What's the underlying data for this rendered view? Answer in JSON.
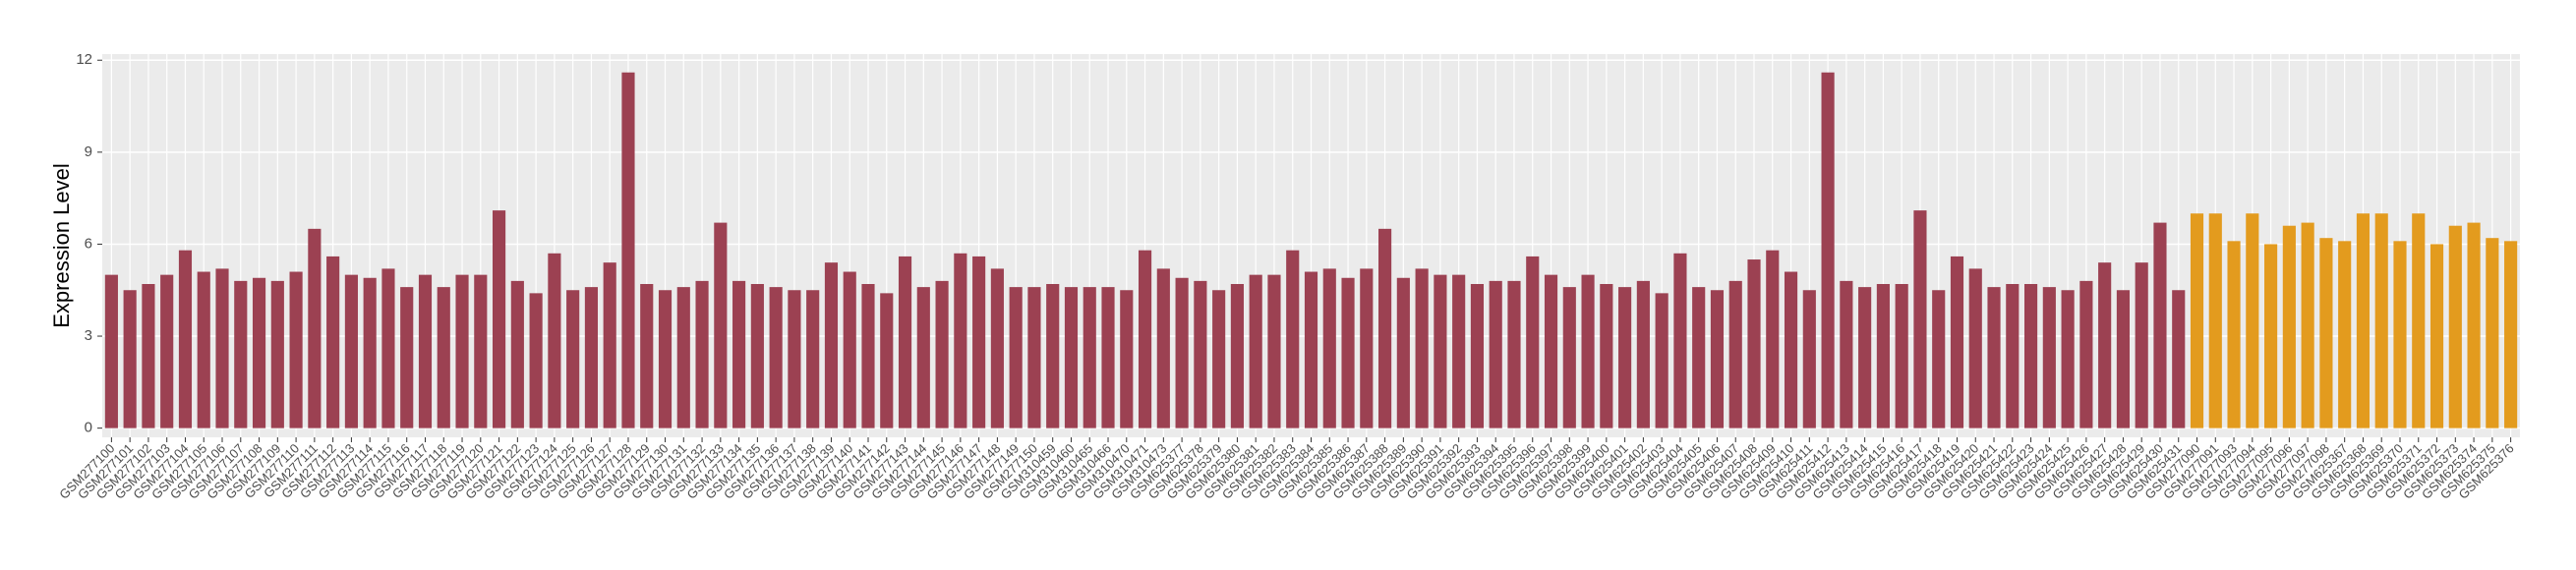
{
  "chart_data": {
    "type": "bar",
    "y_label": "Expression Level",
    "ylim": [
      -0.3,
      12.2
    ],
    "yticks": [
      0,
      3,
      6,
      9,
      12
    ],
    "grid": true,
    "categories": [
      "GSM277100",
      "GSM277101",
      "GSM277102",
      "GSM277103",
      "GSM277104",
      "GSM277105",
      "GSM277106",
      "GSM277107",
      "GSM277108",
      "GSM277109",
      "GSM277110",
      "GSM277111",
      "GSM277112",
      "GSM277113",
      "GSM277114",
      "GSM277115",
      "GSM277116",
      "GSM277117",
      "GSM277118",
      "GSM277119",
      "GSM277120",
      "GSM277121",
      "GSM277122",
      "GSM277123",
      "GSM277124",
      "GSM277125",
      "GSM277126",
      "GSM277127",
      "GSM277128",
      "GSM277129",
      "GSM277130",
      "GSM277131",
      "GSM277132",
      "GSM277133",
      "GSM277134",
      "GSM277135",
      "GSM277136",
      "GSM277137",
      "GSM277138",
      "GSM277139",
      "GSM277140",
      "GSM277141",
      "GSM277142",
      "GSM277143",
      "GSM277144",
      "GSM277145",
      "GSM277146",
      "GSM277147",
      "GSM277148",
      "GSM277149",
      "GSM277150",
      "GSM310459",
      "GSM310460",
      "GSM310465",
      "GSM310466",
      "GSM310470",
      "GSM310471",
      "GSM310473",
      "GSM625377",
      "GSM625378",
      "GSM625379",
      "GSM625380",
      "GSM625381",
      "GSM625382",
      "GSM625383",
      "GSM625384",
      "GSM625385",
      "GSM625386",
      "GSM625387",
      "GSM625388",
      "GSM625389",
      "GSM625390",
      "GSM625391",
      "GSM625392",
      "GSM625393",
      "GSM625394",
      "GSM625395",
      "GSM625396",
      "GSM625397",
      "GSM625398",
      "GSM625399",
      "GSM625400",
      "GSM625401",
      "GSM625402",
      "GSM625403",
      "GSM625404",
      "GSM625405",
      "GSM625406",
      "GSM625407",
      "GSM625408",
      "GSM625409",
      "GSM625410",
      "GSM625411",
      "GSM625412",
      "GSM625413",
      "GSM625414",
      "GSM625415",
      "GSM625416",
      "GSM625417",
      "GSM625418",
      "GSM625419",
      "GSM625420",
      "GSM625421",
      "GSM625422",
      "GSM625423",
      "GSM625424",
      "GSM625425",
      "GSM625426",
      "GSM625427",
      "GSM625428",
      "GSM625429",
      "GSM625430",
      "GSM625431",
      "GSM277090",
      "GSM277091",
      "GSM277093",
      "GSM277094",
      "GSM277095",
      "GSM277096",
      "GSM277097",
      "GSM277098",
      "GSM625367",
      "GSM625368",
      "GSM625369",
      "GSM625370",
      "GSM625371",
      "GSM625372",
      "GSM625373",
      "GSM625374",
      "GSM625375",
      "GSM625376"
    ],
    "values": [
      5.0,
      4.5,
      4.7,
      5.0,
      5.8,
      5.1,
      5.2,
      4.8,
      4.9,
      4.8,
      5.1,
      6.5,
      5.6,
      5.0,
      4.9,
      5.2,
      4.6,
      5.0,
      4.6,
      5.0,
      5.0,
      7.1,
      4.8,
      4.4,
      5.7,
      4.5,
      4.6,
      5.4,
      11.6,
      4.7,
      4.5,
      4.6,
      4.8,
      6.7,
      4.8,
      4.7,
      4.6,
      4.5,
      4.5,
      5.4,
      5.1,
      4.7,
      4.4,
      5.6,
      4.6,
      4.8,
      5.7,
      5.6,
      5.2,
      4.6,
      4.6,
      4.7,
      4.6,
      4.6,
      4.6,
      4.5,
      5.8,
      5.2,
      4.9,
      4.8,
      4.5,
      4.7,
      5.0,
      5.0,
      5.8,
      5.1,
      5.2,
      4.9,
      5.2,
      6.5,
      4.9,
      5.2,
      5.0,
      5.0,
      4.7,
      4.8,
      4.8,
      5.6,
      5.0,
      4.6,
      5.0,
      4.7,
      4.6,
      4.8,
      4.4,
      5.7,
      4.6,
      4.5,
      4.8,
      5.5,
      5.8,
      5.1,
      4.5,
      11.6,
      4.8,
      4.6,
      4.7,
      4.7,
      7.1,
      4.5,
      5.6,
      5.2,
      4.6,
      4.7,
      4.7,
      4.6,
      4.5,
      4.8,
      5.4,
      4.5,
      5.4,
      6.7,
      4.5,
      7.0,
      7.0,
      6.1,
      7.0,
      6.0,
      6.6,
      6.7,
      6.2,
      6.1,
      7.0,
      7.0,
      6.1,
      7.0,
      6.0,
      6.6,
      6.7,
      6.2,
      6.1
    ],
    "colors": [
      "#9c4152",
      "#e39b1e"
    ],
    "bar_groups": [
      0,
      0,
      0,
      0,
      0,
      0,
      0,
      0,
      0,
      0,
      0,
      0,
      0,
      0,
      0,
      0,
      0,
      0,
      0,
      0,
      0,
      0,
      0,
      0,
      0,
      0,
      0,
      0,
      0,
      0,
      0,
      0,
      0,
      0,
      0,
      0,
      0,
      0,
      0,
      0,
      0,
      0,
      0,
      0,
      0,
      0,
      0,
      0,
      0,
      0,
      0,
      0,
      0,
      0,
      0,
      0,
      0,
      0,
      0,
      0,
      0,
      0,
      0,
      0,
      0,
      0,
      0,
      0,
      0,
      0,
      0,
      0,
      0,
      0,
      0,
      0,
      0,
      0,
      0,
      0,
      0,
      0,
      0,
      0,
      0,
      0,
      0,
      0,
      0,
      0,
      0,
      0,
      0,
      0,
      0,
      0,
      0,
      0,
      0,
      0,
      0,
      0,
      0,
      0,
      0,
      0,
      0,
      0,
      0,
      0,
      0,
      0,
      0,
      1,
      1,
      1,
      1,
      1,
      1,
      1,
      1,
      1,
      1,
      1,
      1,
      1,
      1,
      1,
      1,
      1,
      1
    ]
  }
}
